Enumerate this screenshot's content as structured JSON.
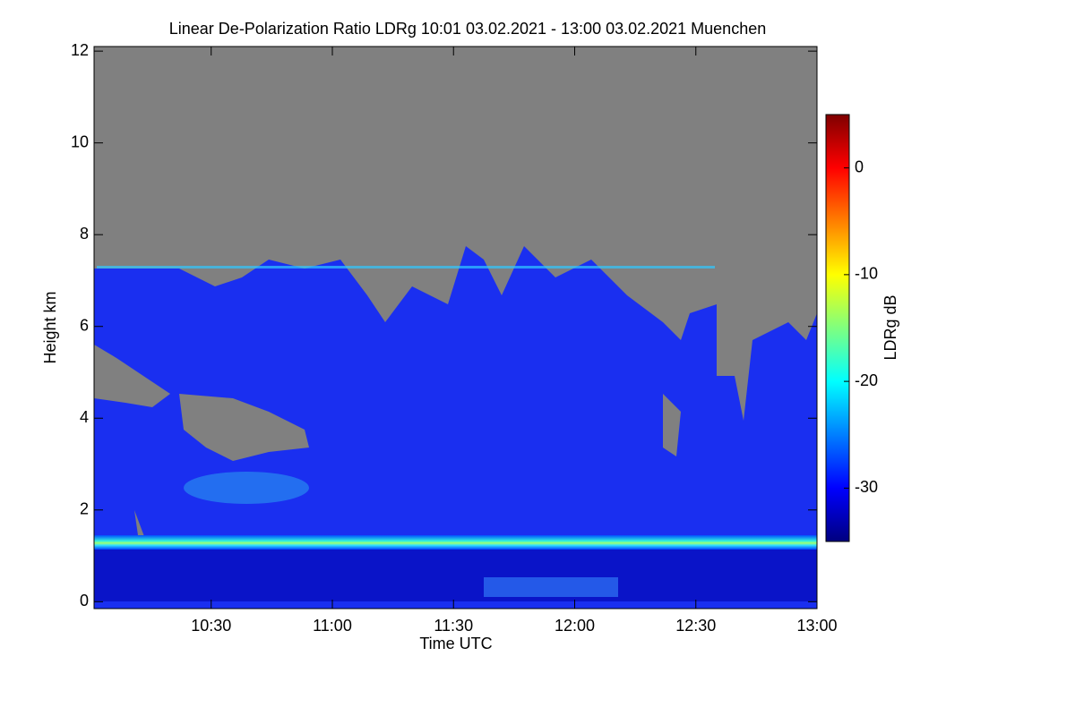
{
  "chart_data": {
    "type": "heatmap",
    "title": "Linear De-Polarization Ratio LDRg   10:01 03.02.2021 - 13:00 03.02.2021 Muenchen",
    "x_label": "Time UTC",
    "y_label": "Height km",
    "xlim": [
      10.0167,
      13.0
    ],
    "xticks": [
      {
        "value": 10.5,
        "label": "10:30"
      },
      {
        "value": 11,
        "label": "11:00"
      },
      {
        "value": 11.5,
        "label": "11:30"
      },
      {
        "value": 12,
        "label": "12:00"
      },
      {
        "value": 12.5,
        "label": "12:30"
      },
      {
        "value": 13,
        "label": "13:00"
      }
    ],
    "ylim": [
      -0.15,
      12.1
    ],
    "yticks": [
      0,
      2,
      4,
      6,
      8,
      10,
      12
    ],
    "colorbar": {
      "label": "LDRg dB",
      "clim": [
        -35,
        5
      ],
      "ticks": [
        0,
        -10,
        -20,
        -30
      ],
      "colormap": [
        "#00007f",
        "#0000ff",
        "#007fff",
        "#00ffff",
        "#7fff7f",
        "#ffff00",
        "#ff7f00",
        "#ff0000",
        "#7f0000"
      ]
    }
  }
}
